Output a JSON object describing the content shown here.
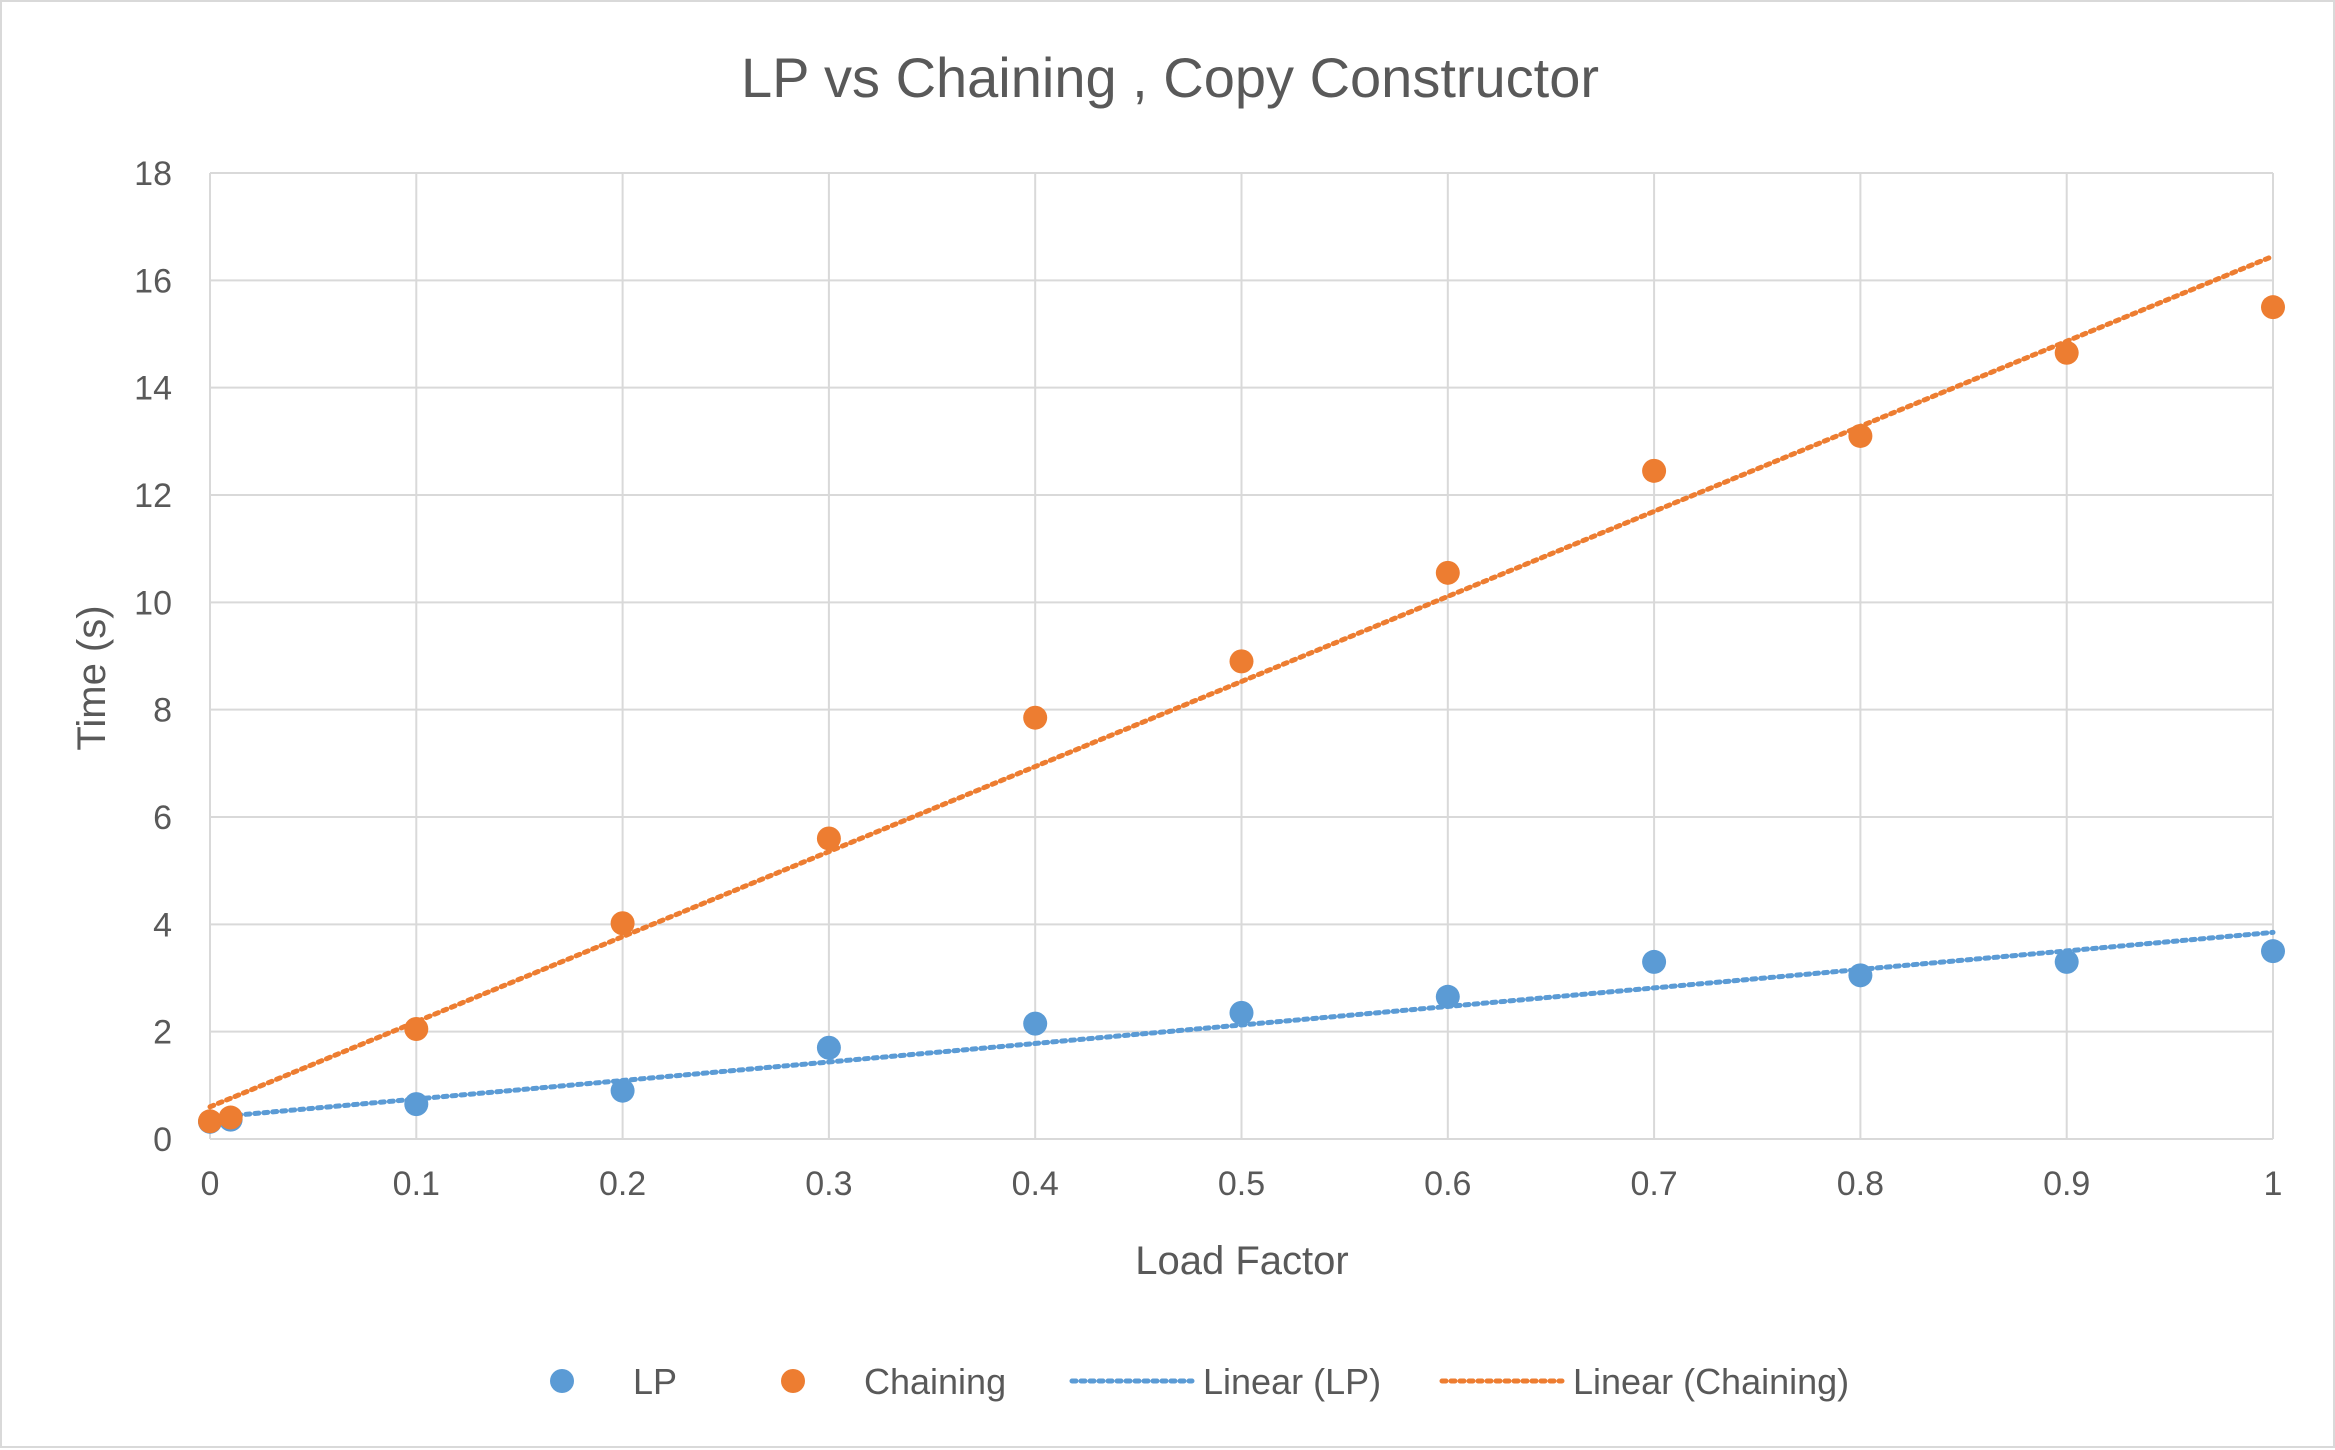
{
  "chart_data": {
    "type": "scatter",
    "title": "LP vs Chaining , Copy Constructor",
    "xlabel": "Load Factor",
    "ylabel": "Time (s)",
    "xlim": [
      0,
      1
    ],
    "ylim": [
      0,
      18
    ],
    "xticks": [
      "0",
      "0.1",
      "0.2",
      "0.3",
      "0.4",
      "0.5",
      "0.6",
      "0.7",
      "0.8",
      "0.9",
      "1"
    ],
    "yticks": [
      "0",
      "2",
      "4",
      "6",
      "8",
      "10",
      "12",
      "14",
      "16",
      "18"
    ],
    "grid": true,
    "legend_position": "bottom",
    "series": [
      {
        "name": "LP",
        "color": "#5b9bd5",
        "marker": "circle",
        "x": [
          0,
          0.01,
          0.1,
          0.2,
          0.3,
          0.4,
          0.5,
          0.6,
          0.7,
          0.8,
          0.9,
          1
        ],
        "y": [
          0.32,
          0.36,
          0.65,
          0.9,
          1.7,
          2.15,
          2.35,
          2.65,
          3.3,
          3.05,
          3.3,
          3.5
        ]
      },
      {
        "name": "Chaining",
        "color": "#ed7d31",
        "marker": "circle",
        "x": [
          0,
          0.01,
          0.1,
          0.2,
          0.3,
          0.4,
          0.5,
          0.6,
          0.7,
          0.8,
          0.9,
          1
        ],
        "y": [
          0.33,
          0.4,
          2.05,
          4.02,
          5.6,
          7.85,
          8.9,
          10.55,
          12.45,
          13.1,
          14.65,
          15.5
        ]
      }
    ],
    "trendlines": [
      {
        "name": "Linear (LP)",
        "color": "#5b9bd5",
        "style": "dotted",
        "x": [
          0,
          1
        ],
        "y": [
          0.4,
          3.85
        ]
      },
      {
        "name": "Linear (Chaining)",
        "color": "#ed7d31",
        "style": "dotted",
        "x": [
          0,
          1
        ],
        "y": [
          0.6,
          16.45
        ]
      }
    ],
    "legend": [
      "LP",
      "Chaining",
      "Linear (LP)",
      "Linear (Chaining)"
    ]
  }
}
